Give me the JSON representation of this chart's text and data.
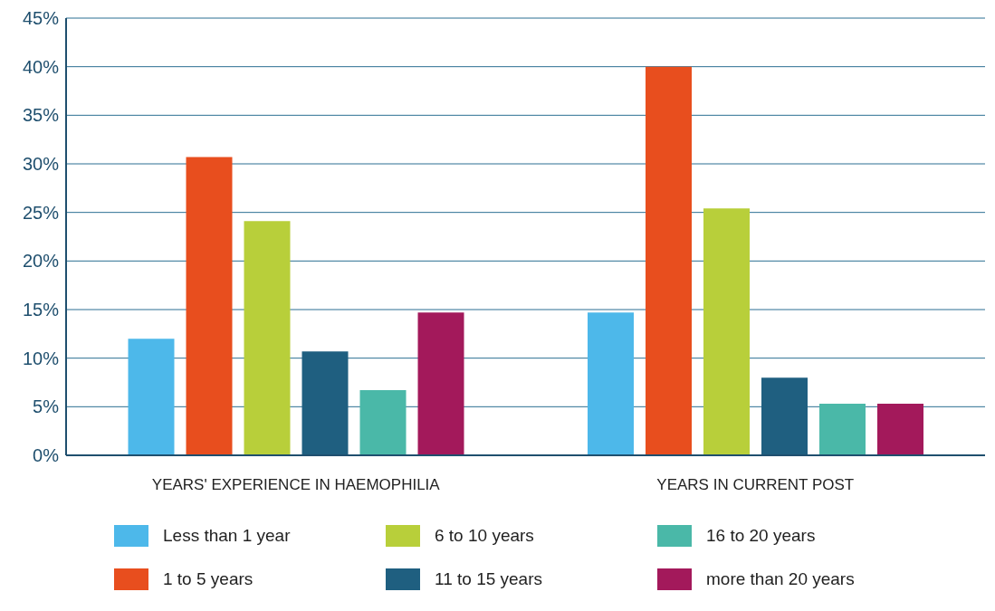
{
  "chart_data": {
    "type": "bar",
    "categories": [
      "YEARS' EXPERIENCE IN HAEMOPHILIA",
      "YEARS IN CURRENT POST"
    ],
    "series": [
      {
        "name": "Less than 1 year",
        "color": "#4db8ea",
        "values": [
          12.0,
          14.7
        ]
      },
      {
        "name": "1 to 5 years",
        "color": "#e84e1e",
        "values": [
          30.7,
          40.0
        ]
      },
      {
        "name": "6 to 10 years",
        "color": "#b8cf3a",
        "values": [
          24.1,
          25.4
        ]
      },
      {
        "name": "11 to 15 years",
        "color": "#1f5f80",
        "values": [
          10.7,
          8.0
        ]
      },
      {
        "name": "16 to 20 years",
        "color": "#4ab8a8",
        "values": [
          6.7,
          5.3
        ]
      },
      {
        "name": "more than 20 years",
        "color": "#a3195b",
        "values": [
          14.7,
          5.3
        ]
      }
    ],
    "ylim": [
      0,
      45
    ],
    "yticks": [
      {
        "value": 0,
        "label": "0%"
      },
      {
        "value": 5,
        "label": "5%"
      },
      {
        "value": 10,
        "label": "10%"
      },
      {
        "value": 15,
        "label": "15%"
      },
      {
        "value": 20,
        "label": "20%"
      },
      {
        "value": 25,
        "label": "25%"
      },
      {
        "value": 30,
        "label": "30%"
      },
      {
        "value": 35,
        "label": "35%"
      },
      {
        "value": 40,
        "label": "40%"
      },
      {
        "value": 45,
        "label": "45%"
      }
    ],
    "grid": "y",
    "legend": "bottom"
  }
}
